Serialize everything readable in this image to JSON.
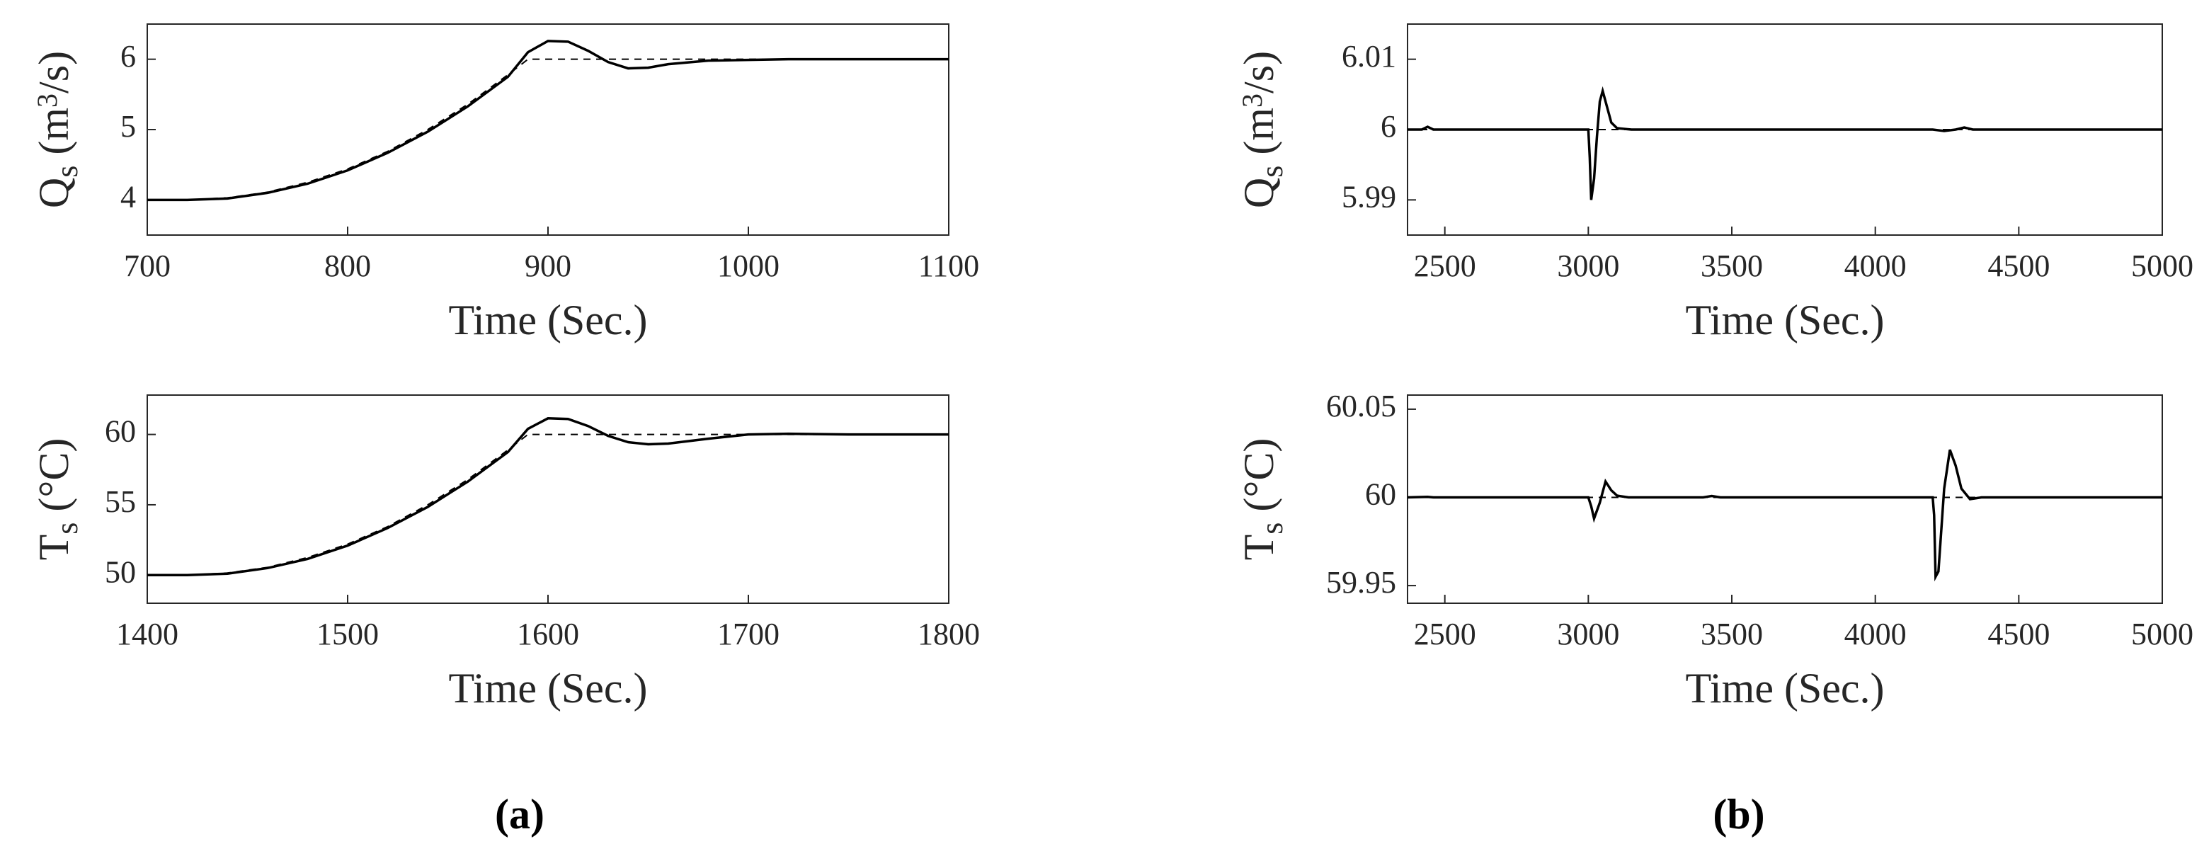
{
  "chart_data": [
    {
      "type": "line",
      "xlabel": "Time (Sec.)",
      "ylabel": [
        {
          "text": "Q"
        },
        {
          "text": "s",
          "sub": true
        },
        {
          "text": " (m"
        },
        {
          "text": "3",
          "sup": true
        },
        {
          "text": "/s)"
        }
      ],
      "xlim": [
        700,
        1100
      ],
      "xticks": [
        700,
        800,
        900,
        1000,
        1100
      ],
      "ylim": [
        3.5,
        6.5
      ],
      "yticks": [
        4,
        5,
        6
      ],
      "series": [
        {
          "color": "#000000",
          "style": "dashed",
          "x": [
            700,
            720,
            740,
            760,
            780,
            800,
            820,
            840,
            860,
            880,
            890,
            1100
          ],
          "values": [
            4,
            4,
            4.03,
            4.11,
            4.25,
            4.44,
            4.69,
            5.0,
            5.36,
            5.78,
            6,
            6
          ]
        },
        {
          "color": "#000000",
          "style": "solid",
          "x": [
            700,
            720,
            740,
            760,
            780,
            800,
            820,
            840,
            860,
            880,
            890,
            900,
            910,
            920,
            930,
            940,
            950,
            960,
            980,
            1000,
            1020,
            1050,
            1100
          ],
          "values": [
            4,
            4,
            4.02,
            4.1,
            4.23,
            4.42,
            4.67,
            4.97,
            5.33,
            5.75,
            6.1,
            6.26,
            6.25,
            6.12,
            5.96,
            5.87,
            5.88,
            5.93,
            5.98,
            5.99,
            6,
            6,
            6
          ]
        }
      ]
    },
    {
      "type": "line",
      "xlabel": "Time (Sec.)",
      "ylabel": [
        {
          "text": "Q"
        },
        {
          "text": "s",
          "sub": true
        },
        {
          "text": " (m"
        },
        {
          "text": "3",
          "sup": true
        },
        {
          "text": "/s)"
        }
      ],
      "xlim": [
        2370,
        5000
      ],
      "xticks": [
        2500,
        3000,
        3500,
        4000,
        4500,
        5000
      ],
      "ylim": [
        5.985,
        6.015
      ],
      "yticks": [
        5.99,
        6,
        6.01
      ],
      "series": [
        {
          "color": "#000000",
          "style": "dashed",
          "x": [
            2370,
            5000
          ],
          "values": [
            6,
            6
          ]
        },
        {
          "color": "#000000",
          "style": "solid",
          "x": [
            2370,
            2420,
            2440,
            2460,
            3000,
            3005,
            3010,
            3020,
            3030,
            3040,
            3050,
            3060,
            3080,
            3100,
            3150,
            3200,
            4200,
            4240,
            4280,
            4310,
            4340,
            5000
          ],
          "values": [
            6,
            6,
            6.0004,
            6,
            6,
            5.996,
            5.99,
            5.993,
            5.999,
            6.004,
            6.0055,
            6.004,
            6.001,
            6.0002,
            6,
            6,
            6,
            5.9998,
            6,
            6.0003,
            6,
            6
          ]
        }
      ]
    },
    {
      "type": "line",
      "xlabel": "Time (Sec.)",
      "ylabel": [
        {
          "text": "T"
        },
        {
          "text": "s",
          "sub": true
        },
        {
          "text": " (°C)"
        }
      ],
      "xlim": [
        1400,
        1800
      ],
      "xticks": [
        1400,
        1500,
        1600,
        1700,
        1800
      ],
      "ylim": [
        48,
        62.8
      ],
      "yticks": [
        50,
        55,
        60
      ],
      "series": [
        {
          "color": "#000000",
          "style": "dashed",
          "x": [
            1400,
            1420,
            1440,
            1460,
            1480,
            1500,
            1520,
            1540,
            1560,
            1580,
            1590,
            1800
          ],
          "values": [
            50,
            50,
            50.15,
            50.55,
            51.25,
            52.2,
            53.45,
            55.0,
            56.8,
            58.9,
            60,
            60
          ]
        },
        {
          "color": "#000000",
          "style": "solid",
          "x": [
            1400,
            1420,
            1440,
            1460,
            1480,
            1500,
            1520,
            1540,
            1560,
            1580,
            1590,
            1600,
            1610,
            1620,
            1630,
            1640,
            1650,
            1660,
            1680,
            1700,
            1720,
            1750,
            1800
          ],
          "values": [
            50,
            50,
            50.1,
            50.5,
            51.15,
            52.1,
            53.35,
            54.85,
            56.65,
            58.75,
            60.4,
            61.15,
            61.1,
            60.6,
            59.9,
            59.45,
            59.3,
            59.35,
            59.7,
            60.0,
            60.05,
            60.0,
            60
          ]
        }
      ]
    },
    {
      "type": "line",
      "xlabel": "Time (Sec.)",
      "ylabel": [
        {
          "text": "T"
        },
        {
          "text": "s",
          "sub": true
        },
        {
          "text": " (°C)"
        }
      ],
      "xlim": [
        2370,
        5000
      ],
      "xticks": [
        2500,
        3000,
        3500,
        4000,
        4500,
        5000
      ],
      "ylim": [
        59.94,
        60.058
      ],
      "yticks": [
        59.95,
        60,
        60.05
      ],
      "series": [
        {
          "color": "#000000",
          "style": "dashed",
          "x": [
            2370,
            5000
          ],
          "values": [
            60,
            60
          ]
        },
        {
          "color": "#000000",
          "style": "solid",
          "x": [
            2370,
            2440,
            2460,
            3000,
            3010,
            3020,
            3040,
            3060,
            3080,
            3100,
            3140,
            3400,
            3430,
            3460,
            4200,
            4205,
            4210,
            4220,
            4240,
            4260,
            4280,
            4300,
            4330,
            4370,
            4400,
            5000
          ],
          "values": [
            60,
            60.0003,
            60,
            60,
            59.995,
            59.988,
            59.997,
            60.009,
            60.004,
            60.001,
            60,
            60,
            60.0008,
            60,
            60,
            59.99,
            59.955,
            59.958,
            60.005,
            60.027,
            60.018,
            60.005,
            59.999,
            60,
            60,
            60
          ]
        }
      ]
    }
  ],
  "panel_labels": [
    "(a)",
    "(b)"
  ]
}
